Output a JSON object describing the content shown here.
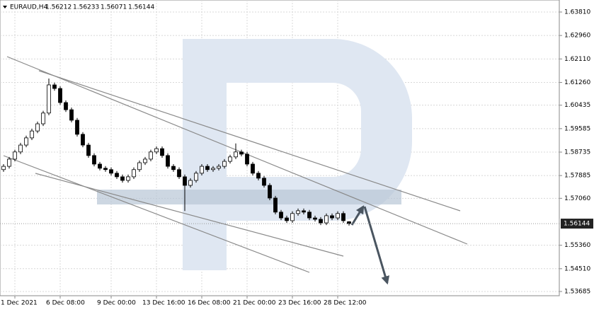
{
  "chart_data": {
    "type": "candlestick",
    "symbol": "EURAUD,H4",
    "ohlc": [
      1.56212,
      1.56233,
      1.56071,
      1.56144
    ],
    "last_price": 1.56144,
    "categories": [
      null,
      null,
      "1 Dec 2021",
      null,
      null,
      null,
      null,
      null,
      null,
      null,
      "6 Dec 08:00",
      null,
      null,
      null,
      null,
      null,
      null,
      null,
      null,
      "9 Dec 00:00",
      null,
      null,
      null,
      null,
      null,
      null,
      null,
      "13 Dec 16:00",
      null,
      null,
      null,
      null,
      null,
      null,
      null,
      "16 Dec 08:00",
      null,
      null,
      null,
      null,
      null,
      null,
      null,
      "21 Dec 00:00",
      null,
      null,
      null,
      null,
      null,
      null,
      null,
      "23 Dec 16:00",
      null,
      null,
      null,
      null,
      null,
      null,
      null,
      "28 Dec 12:00",
      null,
      null
    ],
    "open": [
      1.581,
      1.5822,
      1.5848,
      1.5874,
      1.5899,
      1.5925,
      1.595,
      1.5976,
      1.6015,
      1.6117,
      1.6104,
      1.6053,
      1.6027,
      1.5989,
      1.5938,
      1.5899,
      1.5861,
      1.583,
      1.5815,
      1.581,
      1.5797,
      1.5784,
      1.5771,
      1.5784,
      1.581,
      1.5835,
      1.5848,
      1.5874,
      1.5886,
      1.5861,
      1.5822,
      1.581,
      1.5784,
      1.5753,
      1.5771,
      1.5797,
      1.5822,
      1.581,
      1.5815,
      1.5822,
      1.584,
      1.5856,
      1.5874,
      1.5866,
      1.583,
      1.5797,
      1.5779,
      1.5753,
      1.5707,
      1.5656,
      1.5635,
      1.5625,
      1.5651,
      1.5661,
      1.5656,
      1.5635,
      1.563,
      1.5617,
      1.5643,
      1.5635,
      1.5651,
      1.56212
    ],
    "high": [
      1.583,
      1.5856,
      1.5882,
      1.5907,
      1.5933,
      1.5958,
      1.5984,
      1.6023,
      1.614,
      1.6125,
      1.6112,
      1.6061,
      1.6035,
      1.5997,
      1.5946,
      1.5907,
      1.5869,
      1.5838,
      1.5823,
      1.5818,
      1.5805,
      1.5792,
      1.5792,
      1.5818,
      1.5843,
      1.5856,
      1.5882,
      1.5894,
      1.5894,
      1.5869,
      1.583,
      1.5818,
      1.5792,
      1.5779,
      1.5805,
      1.583,
      1.583,
      1.5823,
      1.583,
      1.5848,
      1.5864,
      1.5905,
      1.5882,
      1.5874,
      1.5838,
      1.5805,
      1.5787,
      1.5761,
      1.5715,
      1.5664,
      1.5643,
      1.5659,
      1.5669,
      1.5669,
      1.5664,
      1.5643,
      1.5638,
      1.5651,
      1.5651,
      1.5659,
      1.5659,
      1.56233
    ],
    "low": [
      1.5802,
      1.5814,
      1.584,
      1.5866,
      1.5891,
      1.5917,
      1.5942,
      1.5968,
      1.6007,
      1.6096,
      1.6045,
      1.6019,
      1.5981,
      1.593,
      1.5891,
      1.5853,
      1.5822,
      1.5807,
      1.5802,
      1.5789,
      1.5776,
      1.5763,
      1.5763,
      1.5776,
      1.5802,
      1.5827,
      1.584,
      1.5866,
      1.5853,
      1.5814,
      1.5802,
      1.5776,
      1.566,
      1.5745,
      1.5763,
      1.5789,
      1.5802,
      1.5802,
      1.5807,
      1.5814,
      1.5832,
      1.5848,
      1.5858,
      1.5822,
      1.5789,
      1.5771,
      1.5745,
      1.5699,
      1.5648,
      1.5627,
      1.5617,
      1.5617,
      1.5643,
      1.5648,
      1.5627,
      1.5622,
      1.5609,
      1.5609,
      1.5627,
      1.5627,
      1.5617,
      1.56071
    ],
    "close": [
      1.5822,
      1.5848,
      1.5874,
      1.5899,
      1.5925,
      1.595,
      1.5976,
      1.6015,
      1.6117,
      1.6104,
      1.6053,
      1.6027,
      1.5989,
      1.5938,
      1.5899,
      1.5861,
      1.583,
      1.5815,
      1.581,
      1.5797,
      1.5784,
      1.5771,
      1.5784,
      1.581,
      1.5835,
      1.5848,
      1.5874,
      1.5886,
      1.5861,
      1.5822,
      1.581,
      1.5784,
      1.5753,
      1.5771,
      1.5797,
      1.5822,
      1.581,
      1.5815,
      1.5822,
      1.584,
      1.5856,
      1.5874,
      1.5866,
      1.583,
      1.5797,
      1.5779,
      1.5753,
      1.5707,
      1.5656,
      1.5635,
      1.5625,
      1.5651,
      1.5661,
      1.5656,
      1.5635,
      1.563,
      1.5617,
      1.5643,
      1.5635,
      1.5651,
      1.5625,
      1.56144
    ],
    "up_color": "#ffffff",
    "down_color": "#000000",
    "wick_color": "#000000",
    "ylim": [
      1.53531,
      1.64246
    ],
    "yticks": [
      {
        "value": 1.6381,
        "label": "1.63810"
      },
      {
        "value": 1.6296,
        "label": "1.62960"
      },
      {
        "value": 1.6211,
        "label": "1.62110"
      },
      {
        "value": 1.6126,
        "label": "1.61260"
      },
      {
        "value": 1.60435,
        "label": "1.60435"
      },
      {
        "value": 1.59585,
        "label": "1.59585"
      },
      {
        "value": 1.58735,
        "label": "1.58735"
      },
      {
        "value": 1.57885,
        "label": "1.57885"
      },
      {
        "value": 1.5706,
        "label": "1.57060"
      },
      {
        "value": 1.5536,
        "label": "1.55360"
      },
      {
        "value": 1.5451,
        "label": "1.54510"
      },
      {
        "value": 1.53685,
        "label": "1.53685"
      }
    ],
    "grid": true
  }
}
